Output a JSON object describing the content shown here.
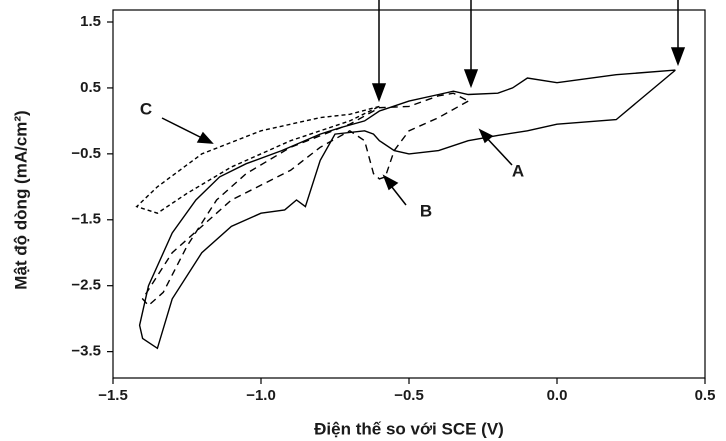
{
  "chart_data": {
    "type": "line",
    "xlabel": "Điện thế so với SCE (V)",
    "ylabel": "Mật độ dòng (mA/cm²)",
    "xlim": [
      -1.5,
      0.5
    ],
    "xticks": [
      {
        "value": -1.5,
        "label": "−1.5"
      },
      {
        "value": -1.0,
        "label": "−1.0"
      },
      {
        "value": -0.5,
        "label": "−0.5"
      },
      {
        "value": 0.0,
        "label": "0.0"
      },
      0.5
    ],
    "ylim": [
      -3.9,
      1.5
    ],
    "yticks": [
      1.5,
      0.5,
      {
        "value": -0.5,
        "label": "−0.5"
      },
      {
        "value": -1.5,
        "label": "−1.5"
      },
      {
        "value": -2.5,
        "label": "−2.5"
      },
      {
        "value": -3.5,
        "label": "−3.5"
      }
    ],
    "series": [
      {
        "name": "A",
        "color": "#000000",
        "dash": "none",
        "x": [
          0.4,
          0.2,
          0.0,
          -0.1,
          -0.2,
          -0.3,
          -0.4,
          -0.5,
          -0.55,
          -0.6,
          -0.62,
          -0.65,
          -0.75,
          -0.8,
          -0.85,
          -0.88,
          -0.92,
          -1.0,
          -1.1,
          -1.2,
          -1.3,
          -1.35,
          -1.4,
          -1.41,
          -1.38,
          -1.3,
          -1.22,
          -1.14,
          -1.05,
          -0.93,
          -0.8,
          -0.73,
          -0.65,
          -0.6,
          -0.5,
          -0.4,
          -0.35,
          -0.3,
          -0.2,
          -0.15,
          -0.1,
          0.0,
          0.2,
          0.4
        ],
        "y": [
          0.77,
          0.02,
          -0.05,
          -0.15,
          -0.22,
          -0.3,
          -0.45,
          -0.5,
          -0.45,
          -0.3,
          -0.2,
          -0.15,
          -0.2,
          -0.6,
          -1.3,
          -1.2,
          -1.35,
          -1.4,
          -1.6,
          -2.0,
          -2.7,
          -3.45,
          -3.3,
          -3.1,
          -2.5,
          -1.7,
          -1.2,
          -0.85,
          -0.65,
          -0.45,
          -0.2,
          -0.1,
          0.0,
          0.15,
          0.3,
          0.4,
          0.45,
          0.4,
          0.42,
          0.5,
          0.65,
          0.58,
          0.7,
          0.77
        ]
      },
      {
        "name": "B",
        "color": "#000000",
        "dash": "7 5",
        "x": [
          -0.3,
          -0.4,
          -0.5,
          -0.55,
          -0.58,
          -0.6,
          -0.62,
          -0.65,
          -0.7,
          -0.8,
          -0.9,
          -1.1,
          -1.3,
          -1.4,
          -1.38,
          -1.33,
          -1.25,
          -1.15,
          -1.05,
          -0.9,
          -0.7,
          -0.6,
          -0.5,
          -0.4,
          -0.35,
          -0.3
        ],
        "y": [
          0.3,
          0.05,
          -0.15,
          -0.45,
          -0.85,
          -0.88,
          -0.8,
          -0.3,
          -0.15,
          -0.4,
          -0.75,
          -1.2,
          -2.0,
          -2.7,
          -2.8,
          -2.6,
          -1.9,
          -1.2,
          -0.8,
          -0.4,
          -0.05,
          0.2,
          0.22,
          0.38,
          0.42,
          0.3
        ]
      },
      {
        "name": "C",
        "color": "#000000",
        "dash": "4 3",
        "x": [
          -0.6,
          -0.7,
          -0.8,
          -1.0,
          -1.2,
          -1.35,
          -1.42,
          -1.35,
          -1.25,
          -1.1,
          -0.9,
          -0.7,
          -0.6
        ],
        "y": [
          0.22,
          0.1,
          0.05,
          -0.15,
          -0.5,
          -1.0,
          -1.3,
          -1.4,
          -1.1,
          -0.7,
          -0.3,
          0.0,
          0.22
        ]
      }
    ]
  }
}
